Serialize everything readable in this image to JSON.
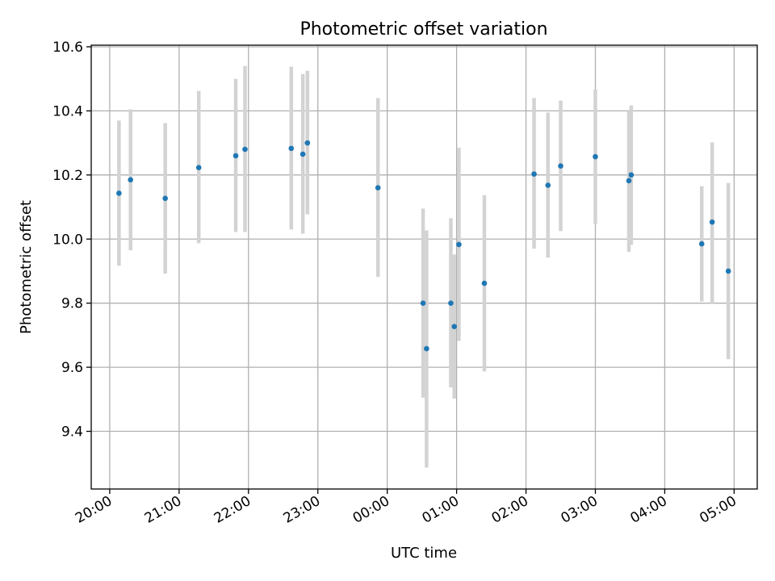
{
  "chart_data": {
    "type": "scatter",
    "title": "Photometric offset variation",
    "xlabel": "UTC time",
    "ylabel": "Photometric offset",
    "x_axis_type": "time",
    "x_start": "20:00",
    "xlim": [
      "19:44",
      "05:20"
    ],
    "ylim": [
      9.22,
      10.605
    ],
    "grid": true,
    "x_tick_labels": [
      "20:00",
      "21:00",
      "22:00",
      "23:00",
      "00:00",
      "01:00",
      "02:00",
      "03:00",
      "04:00",
      "05:00"
    ],
    "y_ticks": [
      9.4,
      9.6,
      9.8,
      10.0,
      10.2,
      10.4,
      10.6
    ],
    "y_tick_labels": [
      "9.4",
      "9.6",
      "9.8",
      "10.0",
      "10.2",
      "10.4",
      "10.6"
    ],
    "series": [
      {
        "marker_color": "#1f77b4",
        "errorbar_color": "#d3d3d3",
        "points": [
          {
            "x": "20:08",
            "y": 10.143,
            "ylow": 9.917,
            "yhigh": 10.37
          },
          {
            "x": "20:18",
            "y": 10.185,
            "ylow": 9.965,
            "yhigh": 10.405
          },
          {
            "x": "20:48",
            "y": 10.127,
            "ylow": 9.892,
            "yhigh": 10.362
          },
          {
            "x": "21:17",
            "y": 10.223,
            "ylow": 9.987,
            "yhigh": 10.462
          },
          {
            "x": "21:49",
            "y": 10.26,
            "ylow": 10.022,
            "yhigh": 10.5
          },
          {
            "x": "21:57",
            "y": 10.28,
            "ylow": 10.022,
            "yhigh": 10.54
          },
          {
            "x": "22:37",
            "y": 10.283,
            "ylow": 10.03,
            "yhigh": 10.538
          },
          {
            "x": "22:47",
            "y": 10.265,
            "ylow": 10.017,
            "yhigh": 10.515
          },
          {
            "x": "22:51",
            "y": 10.3,
            "ylow": 10.077,
            "yhigh": 10.525
          },
          {
            "x": "23:52",
            "y": 10.16,
            "ylow": 9.882,
            "yhigh": 10.44
          },
          {
            "x": "00:31",
            "y": 9.8,
            "ylow": 9.505,
            "yhigh": 10.095
          },
          {
            "x": "00:34",
            "y": 9.658,
            "ylow": 9.287,
            "yhigh": 10.027
          },
          {
            "x": "00:55",
            "y": 9.8,
            "ylow": 9.537,
            "yhigh": 10.065
          },
          {
            "x": "00:58",
            "y": 9.727,
            "ylow": 9.502,
            "yhigh": 9.952
          },
          {
            "x": "01:02",
            "y": 9.983,
            "ylow": 9.682,
            "yhigh": 10.285
          },
          {
            "x": "01:24",
            "y": 9.862,
            "ylow": 9.587,
            "yhigh": 10.137
          },
          {
            "x": "02:07",
            "y": 10.203,
            "ylow": 9.97,
            "yhigh": 10.44
          },
          {
            "x": "02:19",
            "y": 10.168,
            "ylow": 9.942,
            "yhigh": 10.395
          },
          {
            "x": "02:30",
            "y": 10.228,
            "ylow": 10.025,
            "yhigh": 10.432
          },
          {
            "x": "03:00",
            "y": 10.257,
            "ylow": 10.047,
            "yhigh": 10.467
          },
          {
            "x": "03:29",
            "y": 10.182,
            "ylow": 9.96,
            "yhigh": 10.4
          },
          {
            "x": "03:31",
            "y": 10.2,
            "ylow": 9.982,
            "yhigh": 10.417
          },
          {
            "x": "04:32",
            "y": 9.985,
            "ylow": 9.805,
            "yhigh": 10.165
          },
          {
            "x": "04:41",
            "y": 10.053,
            "ylow": 9.8,
            "yhigh": 10.302
          },
          {
            "x": "04:55",
            "y": 9.9,
            "ylow": 9.625,
            "yhigh": 10.175
          }
        ]
      }
    ]
  }
}
